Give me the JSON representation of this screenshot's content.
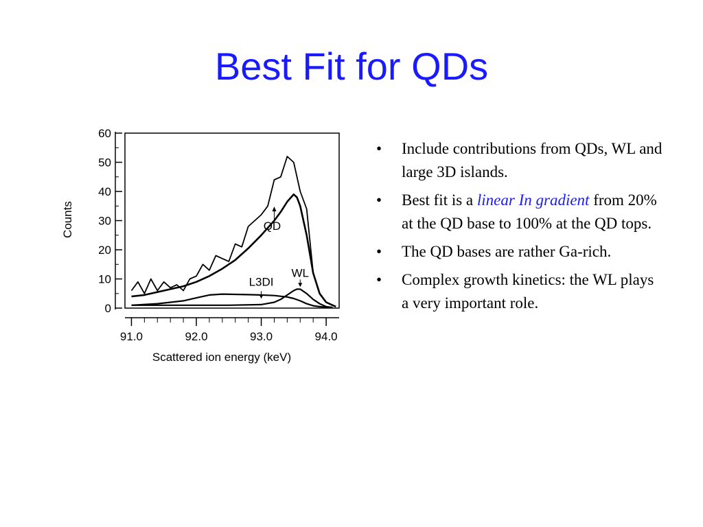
{
  "slide": {
    "title": "Best Fit for QDs"
  },
  "bullets": [
    {
      "text": "Include contributions from QDs, WL and large 3D islands."
    },
    {
      "before": "Best fit is a ",
      "emphasis": "linear In gradient",
      "after": " from 20% at the QD base to 100% at the QD tops."
    },
    {
      "text": "The QD bases are rather Ga-rich."
    },
    {
      "text": "Complex growth kinetics: the WL plays a very important role."
    }
  ],
  "colors": {
    "title": "#1a1aff",
    "emphasis": "#1a1aff",
    "text": "#000000"
  },
  "chart_data": {
    "type": "line",
    "title": "",
    "xlabel": "Scattered ion energy (keV)",
    "ylabel": "Counts",
    "xlim": [
      90.9,
      94.2
    ],
    "ylim": [
      0,
      60
    ],
    "x_ticks": [
      "91.0",
      "92.0",
      "93.0",
      "94.0"
    ],
    "y_ticks": [
      "0",
      "10",
      "20",
      "30",
      "40",
      "50",
      "60"
    ],
    "grid": false,
    "annotations": [
      {
        "text": "QD",
        "x": 93.2,
        "y": 32
      },
      {
        "text": "L3DI",
        "x": 93.0,
        "y": 3
      },
      {
        "text": "WL",
        "x": 93.6,
        "y": 7
      }
    ],
    "series": [
      {
        "style": "noisy",
        "x": [
          91.0,
          91.1,
          91.2,
          91.3,
          91.4,
          91.5,
          91.6,
          91.7,
          91.8,
          91.9,
          92.0,
          92.1,
          92.2,
          92.3,
          92.4,
          92.5,
          92.6,
          92.7,
          92.8,
          92.9,
          93.0,
          93.1,
          93.2,
          93.3,
          93.4,
          93.5,
          93.6,
          93.7,
          93.8,
          93.9,
          94.0,
          94.1
        ],
        "y": [
          6,
          9,
          5,
          10,
          6,
          9,
          7,
          8,
          6,
          10,
          11,
          15,
          13,
          18,
          17,
          16,
          22,
          21,
          28,
          30,
          32,
          35,
          44,
          45,
          52,
          50,
          40,
          34,
          12,
          5,
          2,
          1
        ]
      },
      {
        "style": "fit",
        "x": [
          91.0,
          91.2,
          91.4,
          91.6,
          91.8,
          92.0,
          92.2,
          92.4,
          92.6,
          92.8,
          93.0,
          93.2,
          93.3,
          93.4,
          93.5,
          93.55,
          93.6,
          93.7,
          93.8,
          93.9,
          94.0,
          94.1,
          94.15
        ],
        "y": [
          4,
          4.5,
          5.5,
          6.5,
          7.5,
          9,
          11,
          13.5,
          16.5,
          20.5,
          25,
          30,
          33,
          36.5,
          39,
          38,
          35,
          25,
          12,
          5,
          2,
          1,
          0.5
        ]
      },
      {
        "style": "component",
        "x": [
          91.0,
          91.4,
          91.8,
          92.0,
          92.2,
          92.4,
          92.6,
          92.8,
          93.0,
          93.2,
          93.4,
          93.5,
          93.6,
          93.7,
          93.8,
          93.9,
          94.0,
          94.1
        ],
        "y": [
          1,
          1.5,
          2.5,
          3.5,
          4.5,
          4.8,
          4.7,
          4.6,
          4.5,
          4.3,
          3.8,
          3.3,
          2.5,
          1.5,
          0.8,
          0.5,
          0.3,
          0.2
        ]
      },
      {
        "style": "component",
        "x": [
          91.0,
          92.0,
          92.5,
          93.0,
          93.2,
          93.3,
          93.4,
          93.5,
          93.55,
          93.6,
          93.7,
          93.8,
          93.9,
          94.0,
          94.1
        ],
        "y": [
          1,
          1,
          1,
          1.2,
          2,
          3,
          4.5,
          6,
          6.5,
          6.5,
          5,
          3,
          1.5,
          0.5,
          0.2
        ]
      }
    ]
  }
}
